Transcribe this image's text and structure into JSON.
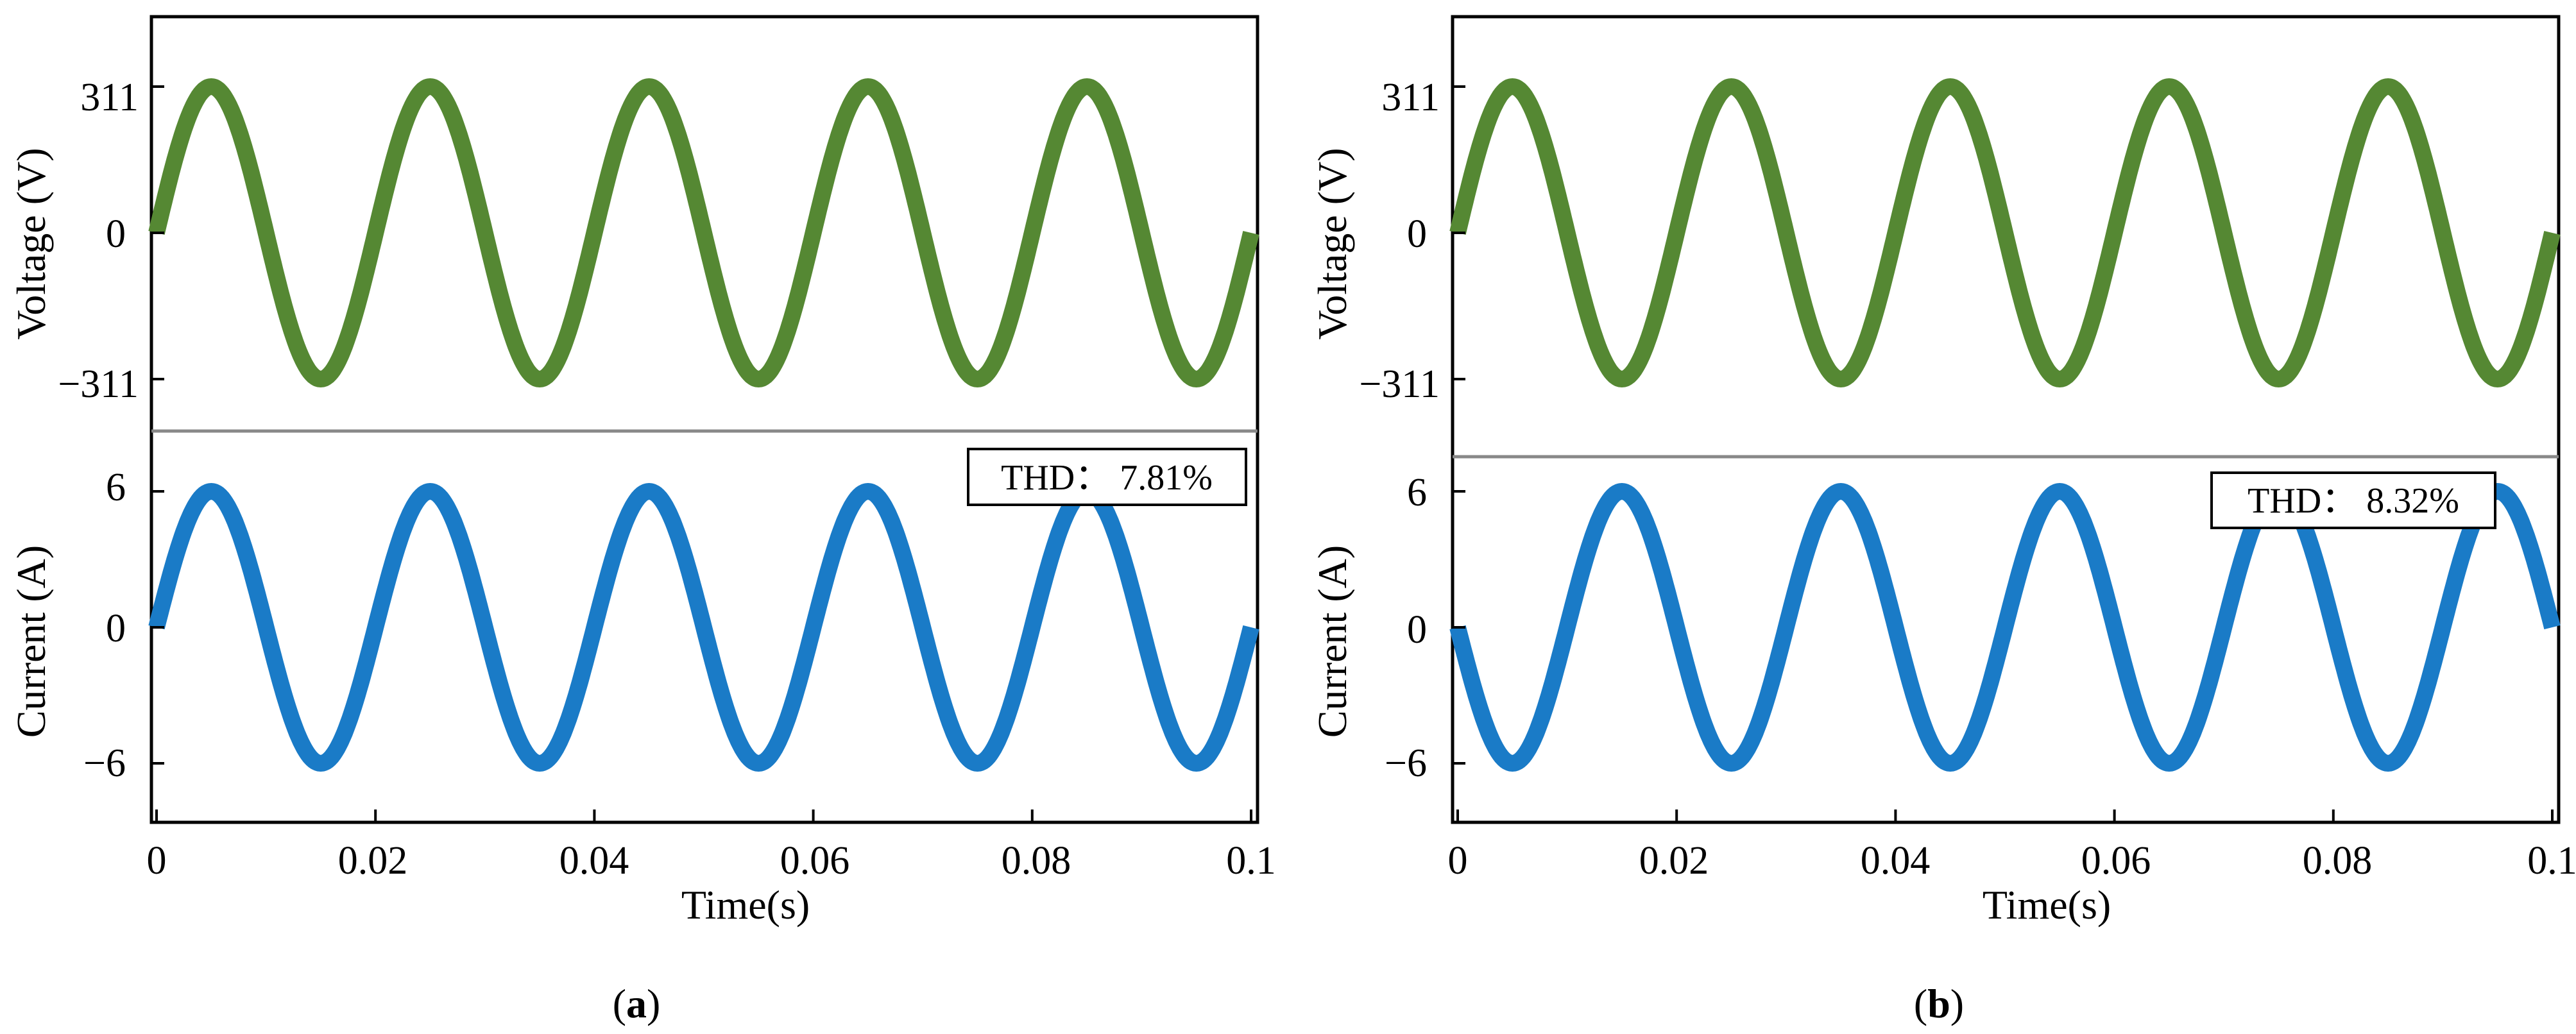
{
  "colors": {
    "voltage": "#558833",
    "current": "#1a7bc7",
    "divider": "#888888",
    "axis": "#000000"
  },
  "chart_data": [
    {
      "type": "line",
      "panel": "a",
      "caption": "a",
      "xlabel": "Time(s)",
      "xlim": [
        0,
        0.1
      ],
      "xticks": [
        0,
        0.02,
        0.04,
        0.06,
        0.08,
        0.1
      ],
      "xtick_labels": [
        "0",
        "0.02",
        "0.04",
        "0.06",
        "0.08",
        "0.1"
      ],
      "voltage": {
        "ylabel": "Voltage (V)",
        "yticks": [
          311,
          0,
          -311
        ],
        "ytick_labels": [
          "311",
          "0",
          "−311"
        ],
        "amplitude": 311,
        "frequency_hz": 50,
        "phase_deg": 0
      },
      "current": {
        "ylabel": "Current (A)",
        "yticks": [
          6,
          0,
          -6
        ],
        "ytick_labels": [
          "6",
          "0",
          "−6"
        ],
        "amplitude": 6,
        "frequency_hz": 50,
        "phase_deg": 0
      },
      "thd_label": "THD： 7.81%",
      "thd_percent": 7.81
    },
    {
      "type": "line",
      "panel": "b",
      "caption": "b",
      "xlabel": "Time(s)",
      "xlim": [
        0,
        0.1
      ],
      "xticks": [
        0,
        0.02,
        0.04,
        0.06,
        0.08,
        0.1
      ],
      "xtick_labels": [
        "0",
        "0.02",
        "0.04",
        "0.06",
        "0.08",
        "0.1"
      ],
      "voltage": {
        "ylabel": "Voltage (V)",
        "yticks": [
          311,
          0,
          -311
        ],
        "ytick_labels": [
          "311",
          "0",
          "−311"
        ],
        "amplitude": 311,
        "frequency_hz": 50,
        "phase_deg": 0
      },
      "current": {
        "ylabel": "Current (A)",
        "yticks": [
          6,
          0,
          -6
        ],
        "ytick_labels": [
          "6",
          "0",
          "−6"
        ],
        "amplitude": 6,
        "frequency_hz": 50,
        "phase_deg": 180
      },
      "thd_label": "THD： 8.32%",
      "thd_percent": 8.32
    }
  ]
}
